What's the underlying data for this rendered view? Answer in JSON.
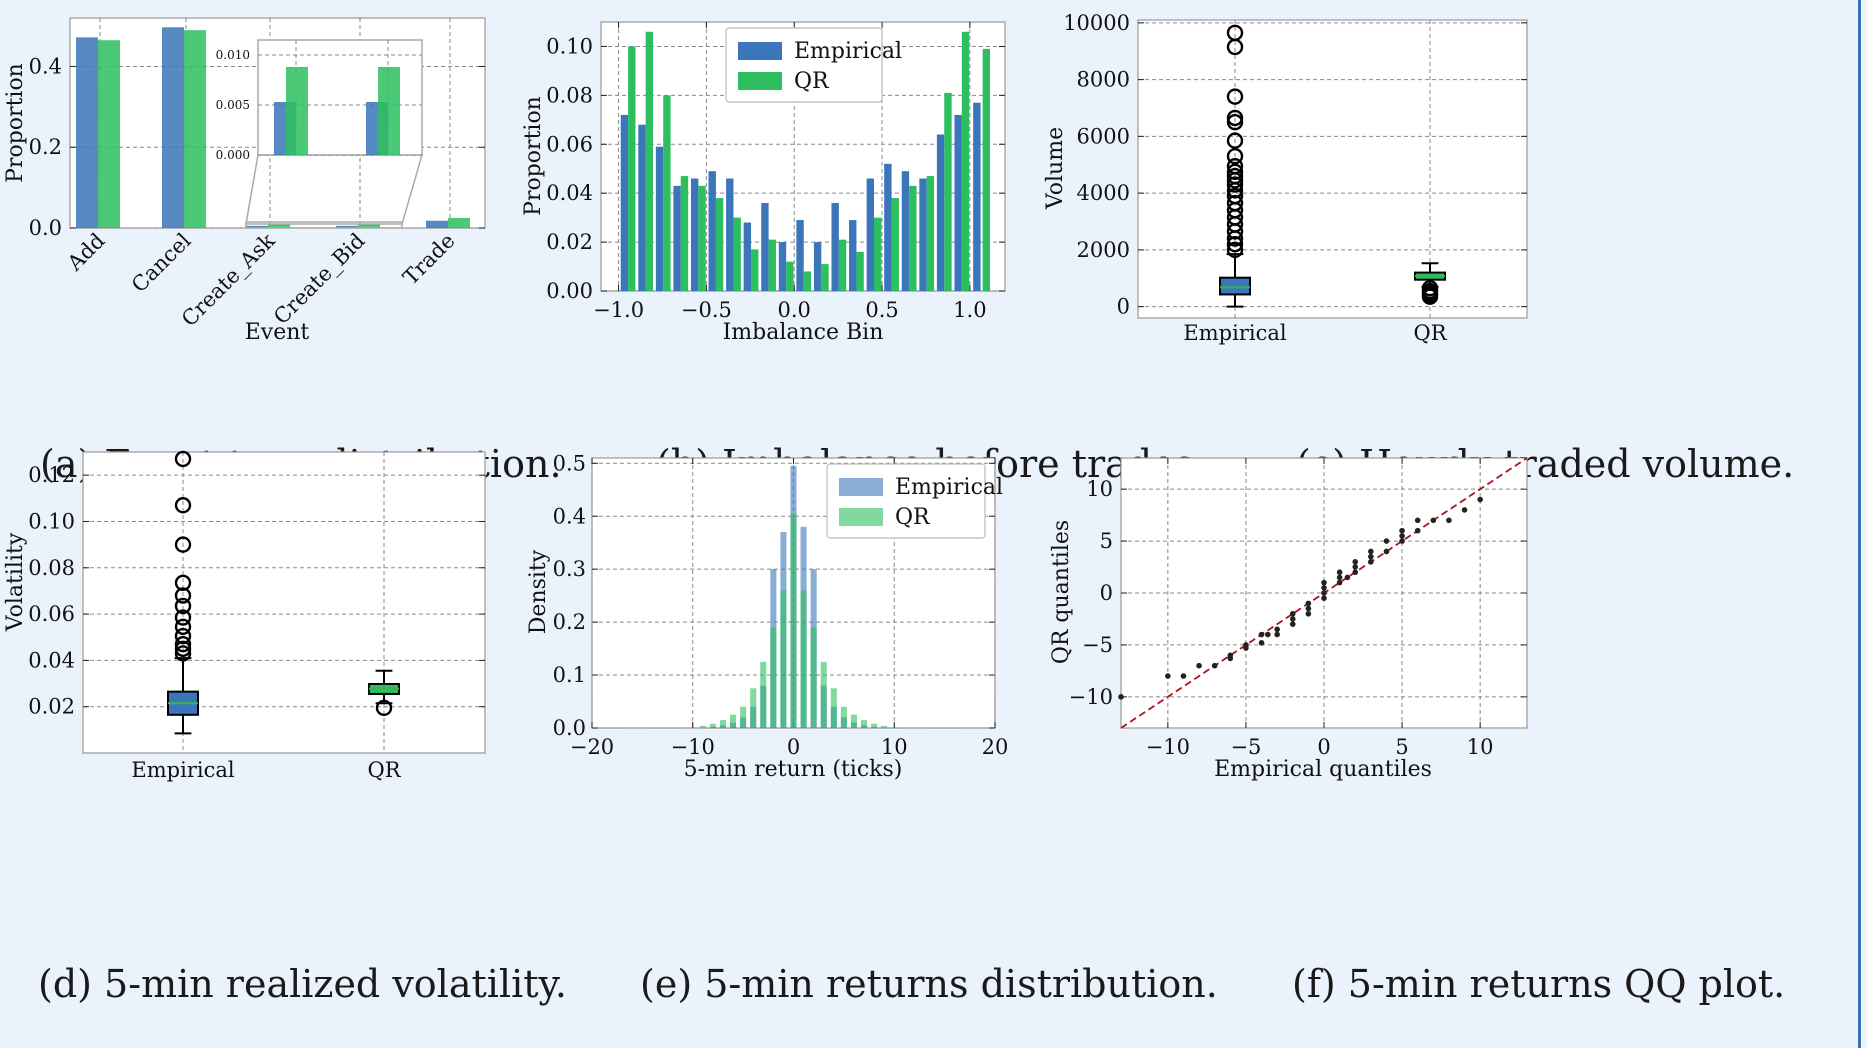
{
  "captions": {
    "a": "(a) Event-type distribution.",
    "b": "(b) Imbalance before trades.",
    "c": "(c) Hourly traded volume.",
    "d": "(d) 5-min realized volatility.",
    "e": "(e) 5-min returns distribution.",
    "f": "(f) 5-min returns QQ plot."
  },
  "colors": {
    "empirical": "#3a76b9",
    "qr": "#2dbf5f",
    "qq_line": "#b0101a",
    "qq_point": "#222222"
  },
  "chart_data": [
    {
      "id": "a",
      "type": "bar",
      "title": "",
      "xlabel": "Event",
      "ylabel": "Proportion",
      "categories": [
        "Add",
        "Cancel",
        "Create_Ask",
        "Create_Bid",
        "Trade"
      ],
      "series": [
        {
          "name": "Empirical",
          "values": [
            0.472,
            0.497,
            0.0053,
            0.0053,
            0.018
          ]
        },
        {
          "name": "QR",
          "values": [
            0.465,
            0.49,
            0.0088,
            0.0088,
            0.025
          ]
        }
      ],
      "ylim": [
        0,
        0.52
      ],
      "yticks": [
        0.0,
        0.2,
        0.4
      ],
      "grid": true,
      "inset": {
        "categories": [
          "Create_Ask",
          "Create_Bid"
        ],
        "ylim": [
          0,
          0.0115
        ],
        "yticks": [
          0.0,
          0.005,
          0.01
        ]
      }
    },
    {
      "id": "b",
      "type": "bar",
      "title": "",
      "xlabel": "Imbalance Bin",
      "ylabel": "Proportion",
      "x": [
        -0.95,
        -0.85,
        -0.75,
        -0.65,
        -0.55,
        -0.45,
        -0.35,
        -0.25,
        -0.15,
        -0.05,
        0.05,
        0.15,
        0.25,
        0.35,
        0.45,
        0.55,
        0.65,
        0.75,
        0.85,
        0.95
      ],
      "series": [
        {
          "name": "Empirical",
          "values": [
            0.072,
            0.068,
            0.059,
            0.043,
            0.046,
            0.049,
            0.046,
            0.028,
            0.036,
            0.02,
            0.029,
            0.02,
            0.036,
            0.029,
            0.046,
            0.052,
            0.049,
            0.046,
            0.064,
            0.072
          ]
        },
        {
          "name": "QR",
          "values": [
            0.1,
            0.106,
            0.08,
            0.047,
            0.043,
            0.038,
            0.03,
            0.017,
            0.021,
            0.012,
            0.008,
            0.011,
            0.021,
            0.016,
            0.03,
            0.038,
            0.043,
            0.047,
            0.081,
            0.106
          ]
        }
      ],
      "extra_empirical": [
        {
          "x": 1.04,
          "value": 0.077
        }
      ],
      "extra_qr": [
        {
          "x": 1.06,
          "value": 0.099
        }
      ],
      "xlim": [
        -1.1,
        1.2
      ],
      "ylim": [
        0,
        0.11
      ],
      "xticks": [
        -1.0,
        -0.5,
        0.0,
        0.5,
        1.0
      ],
      "xtick_labels": [
        "−1.0",
        "−0.5",
        "0.0",
        "0.5",
        "1.0"
      ],
      "yticks": [
        0.0,
        0.02,
        0.04,
        0.06,
        0.08,
        0.1
      ],
      "ytick_labels": [
        "0.00",
        "0.02",
        "0.04",
        "0.06",
        "0.08",
        "0.10"
      ],
      "legend": {
        "placement": "top-center",
        "entries": [
          "Empirical",
          "QR"
        ]
      },
      "grid": true
    },
    {
      "id": "c",
      "type": "box",
      "title": "",
      "xlabel": "",
      "ylabel": "Volume",
      "categories": [
        "Empirical",
        "QR"
      ],
      "boxes": [
        {
          "name": "Empirical",
          "whisker_low": 0,
          "q1": 430,
          "median": 680,
          "q3": 1020,
          "whisker_high": 1850,
          "outliers": [
            9650,
            9150,
            7400,
            6650,
            6500,
            5850,
            5300,
            4950,
            4750,
            4600,
            4450,
            4300,
            4100,
            3900,
            3650,
            3400,
            3150,
            2900,
            2650,
            2400,
            2200,
            2000
          ]
        },
        {
          "name": "QR",
          "whisker_low": 700,
          "q1": 950,
          "median": 1080,
          "q3": 1200,
          "whisker_high": 1530,
          "outliers": [
            650,
            550,
            480,
            410,
            350
          ]
        }
      ],
      "ylim": [
        -400,
        10100
      ],
      "yticks": [
        0,
        2000,
        4000,
        6000,
        8000,
        10000
      ],
      "grid": true
    },
    {
      "id": "d",
      "type": "box",
      "title": "",
      "xlabel": "",
      "ylabel": "Volatility",
      "categories": [
        "Empirical",
        "QR"
      ],
      "boxes": [
        {
          "name": "Empirical",
          "whisker_low": 0.0085,
          "q1": 0.0165,
          "median": 0.0215,
          "q3": 0.0265,
          "whisker_high": 0.041,
          "outliers": [
            0.127,
            0.107,
            0.09,
            0.0735,
            0.068,
            0.0635,
            0.0585,
            0.0545,
            0.0505,
            0.047,
            0.045,
            0.043
          ]
        },
        {
          "name": "QR",
          "whisker_low": 0.0215,
          "q1": 0.0255,
          "median": 0.0278,
          "q3": 0.0298,
          "whisker_high": 0.0355,
          "outliers": [
            0.0195
          ]
        }
      ],
      "ylim": [
        0,
        0.13
      ],
      "yticks": [
        0.02,
        0.04,
        0.06,
        0.08,
        0.1,
        0.12
      ],
      "ytick_labels": [
        "0.02",
        "0.04",
        "0.06",
        "0.08",
        "0.10",
        "0.12"
      ],
      "grid": true
    },
    {
      "id": "e",
      "type": "bar",
      "title": "",
      "xlabel": "5-min return (ticks)",
      "ylabel": "Density",
      "x": [
        -10,
        -9,
        -8,
        -7,
        -6,
        -5,
        -4,
        -3,
        -2,
        -1,
        0,
        1,
        2,
        3,
        4,
        5,
        6,
        7,
        8,
        9,
        10
      ],
      "series": [
        {
          "name": "Empirical",
          "values": [
            0,
            0,
            0.002,
            0.005,
            0.01,
            0.02,
            0.04,
            0.08,
            0.3,
            0.37,
            0.495,
            0.38,
            0.3,
            0.08,
            0.04,
            0.02,
            0.01,
            0.005,
            0.002,
            0,
            0
          ]
        },
        {
          "name": "QR",
          "values": [
            0.001,
            0.004,
            0.008,
            0.015,
            0.025,
            0.04,
            0.075,
            0.125,
            0.19,
            0.26,
            0.405,
            0.26,
            0.19,
            0.125,
            0.075,
            0.04,
            0.025,
            0.015,
            0.008,
            0.004,
            0.001
          ]
        }
      ],
      "xlim": [
        -20,
        20
      ],
      "ylim": [
        0,
        0.51
      ],
      "xticks": [
        -20,
        -10,
        0,
        10,
        20
      ],
      "xtick_labels": [
        "−20",
        "−10",
        "0",
        "10",
        "20"
      ],
      "yticks": [
        0.0,
        0.1,
        0.2,
        0.3,
        0.4,
        0.5
      ],
      "ytick_labels": [
        "0.0",
        "0.1",
        "0.2",
        "0.3",
        "0.4",
        "0.5"
      ],
      "legend": {
        "placement": "top-right",
        "entries": [
          "Empirical",
          "QR"
        ]
      },
      "grid": true
    },
    {
      "id": "f",
      "type": "scatter",
      "title": "",
      "xlabel": "Empirical quantiles",
      "ylabel": "QR quantiles",
      "points": [
        [
          -13,
          -10
        ],
        [
          -10,
          -8
        ],
        [
          -9,
          -8
        ],
        [
          -8,
          -7
        ],
        [
          -7,
          -7
        ],
        [
          -6,
          -6
        ],
        [
          -6,
          -6.3
        ],
        [
          -5,
          -5
        ],
        [
          -5,
          -5.3
        ],
        [
          -4,
          -4
        ],
        [
          -4,
          -4.8
        ],
        [
          -3.6,
          -4
        ],
        [
          -3,
          -3.5
        ],
        [
          -3,
          -4
        ],
        [
          -2,
          -2
        ],
        [
          -2,
          -2.5
        ],
        [
          -2,
          -3
        ],
        [
          -1,
          -1
        ],
        [
          -1,
          -1.5
        ],
        [
          -1,
          -2
        ],
        [
          0,
          0
        ],
        [
          0,
          0.5
        ],
        [
          0,
          1
        ],
        [
          0,
          -0.5
        ],
        [
          1,
          1
        ],
        [
          1,
          1.5
        ],
        [
          1,
          2
        ],
        [
          1.5,
          1.5
        ],
        [
          2,
          2
        ],
        [
          2,
          2.5
        ],
        [
          2,
          3
        ],
        [
          3,
          3
        ],
        [
          3,
          3.5
        ],
        [
          3,
          4
        ],
        [
          4,
          4
        ],
        [
          4,
          5
        ],
        [
          5,
          5
        ],
        [
          5,
          5.5
        ],
        [
          5,
          6
        ],
        [
          6,
          6
        ],
        [
          6,
          7
        ],
        [
          7,
          7
        ],
        [
          8,
          7
        ],
        [
          9,
          8
        ],
        [
          10,
          9
        ]
      ],
      "reference_line": [
        [
          -13,
          -13
        ],
        [
          13,
          13
        ]
      ],
      "xlim": [
        -13,
        13
      ],
      "ylim": [
        -13,
        13
      ],
      "xticks": [
        -10,
        -5,
        0,
        5,
        10
      ],
      "xtick_labels": [
        "−10",
        "−5",
        "0",
        "5",
        "10"
      ],
      "yticks": [
        -10,
        -5,
        0,
        5,
        10
      ],
      "ytick_labels": [
        "−10",
        "−5",
        "0",
        "5",
        "10"
      ],
      "grid": true
    }
  ]
}
